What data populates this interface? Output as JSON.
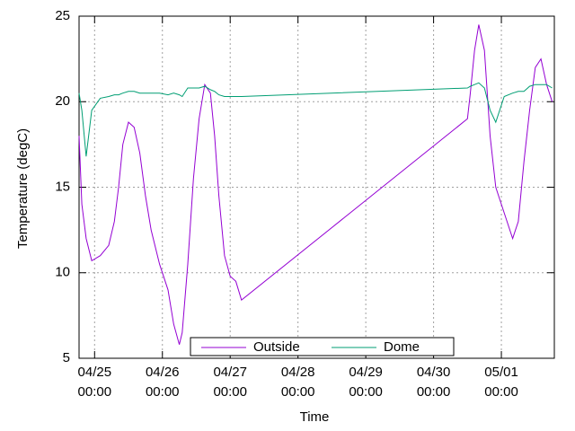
{
  "chart_data": {
    "type": "line",
    "xlabel": "Time",
    "ylabel": "Temperature (degC)",
    "x": [
      "04/24 18:30",
      "04/24 19:30",
      "04/24 21:00",
      "04/24 23:00",
      "04/25 02:00",
      "04/25 05:00",
      "04/25 07:00",
      "04/25 08:30",
      "04/25 10:00",
      "04/25 12:00",
      "04/25 14:00",
      "04/25 16:00",
      "04/25 18:00",
      "04/25 20:00",
      "04/25 23:00",
      "04/26 02:00",
      "04/26 04:00",
      "04/26 06:00",
      "04/26 07:00",
      "04/26 09:00",
      "04/26 11:00",
      "04/26 13:00",
      "04/26 15:00",
      "04/26 17:00",
      "04/26 18:30",
      "04/26 20:00",
      "04/26 22:00",
      "04/27 00:00",
      "04/27 02:00",
      "04/27 04:00",
      "04/30 12:00",
      "04/30 13:00",
      "04/30 14:30",
      "04/30 16:00",
      "04/30 18:00",
      "04/30 20:00",
      "04/30 22:00",
      "05/01 01:00",
      "05/01 04:00",
      "05/01 06:00",
      "05/01 08:00",
      "05/01 10:00",
      "05/01 12:00",
      "05/01 14:00",
      "05/01 16:00",
      "05/01 18:00"
    ],
    "series": [
      {
        "name": "Outside",
        "color": "#9400d3",
        "values": [
          18.0,
          14.0,
          12.0,
          10.7,
          11.0,
          11.6,
          13.0,
          15.0,
          17.5,
          18.8,
          18.5,
          17.0,
          14.5,
          12.5,
          10.5,
          9.0,
          7.0,
          5.8,
          6.5,
          10.5,
          15.5,
          19.0,
          21.0,
          20.5,
          18.0,
          14.5,
          11.0,
          9.8,
          9.5,
          8.4,
          19.0,
          20.5,
          23.0,
          24.5,
          23.0,
          18.0,
          15.0,
          13.5,
          12.0,
          13.0,
          16.5,
          19.5,
          22.0,
          22.5,
          21.0,
          20.0
        ]
      },
      {
        "name": "Dome",
        "color": "#009e73",
        "values": [
          20.5,
          19.5,
          16.8,
          19.5,
          20.2,
          20.3,
          20.4,
          20.4,
          20.5,
          20.6,
          20.6,
          20.5,
          20.5,
          20.5,
          20.5,
          20.4,
          20.5,
          20.4,
          20.3,
          20.8,
          20.8,
          20.8,
          20.9,
          20.7,
          20.6,
          20.4,
          20.3,
          20.3,
          20.3,
          20.3,
          20.8,
          20.9,
          21.0,
          21.1,
          20.8,
          19.5,
          18.8,
          20.3,
          20.5,
          20.6,
          20.6,
          20.9,
          21.0,
          21.0,
          21.0,
          20.8
        ]
      }
    ],
    "xlim": [
      "04/24 18:30",
      "05/01 18:45"
    ],
    "xticks": [
      "04/25 00:00",
      "04/26 00:00",
      "04/27 00:00",
      "04/28 00:00",
      "04/29 00:00",
      "04/30 00:00",
      "05/01 00:00"
    ],
    "ylim": [
      5,
      25
    ],
    "yticks": [
      5,
      10,
      15,
      20,
      25
    ],
    "grid": true,
    "legend": "bottom center"
  }
}
